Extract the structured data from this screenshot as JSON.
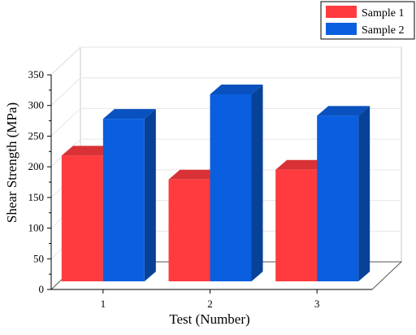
{
  "chart_data": {
    "type": "bar",
    "title": "",
    "xlabel": "Test (Number)",
    "ylabel": "Shear Strength (MPa)",
    "categories": [
      "1",
      "2",
      "3"
    ],
    "ylim": [
      0,
      350
    ],
    "yticks": [
      "0",
      "50",
      "100",
      "150",
      "200",
      "250",
      "300",
      "350"
    ],
    "grid": true,
    "legend_position": "top-right",
    "series": [
      {
        "name": "Sample 1",
        "values": [
          205,
          166,
          182
        ],
        "color": "#ff3b40"
      },
      {
        "name": "Sample 2",
        "values": [
          265,
          305,
          270
        ],
        "color": "#0a5fe0"
      }
    ]
  }
}
